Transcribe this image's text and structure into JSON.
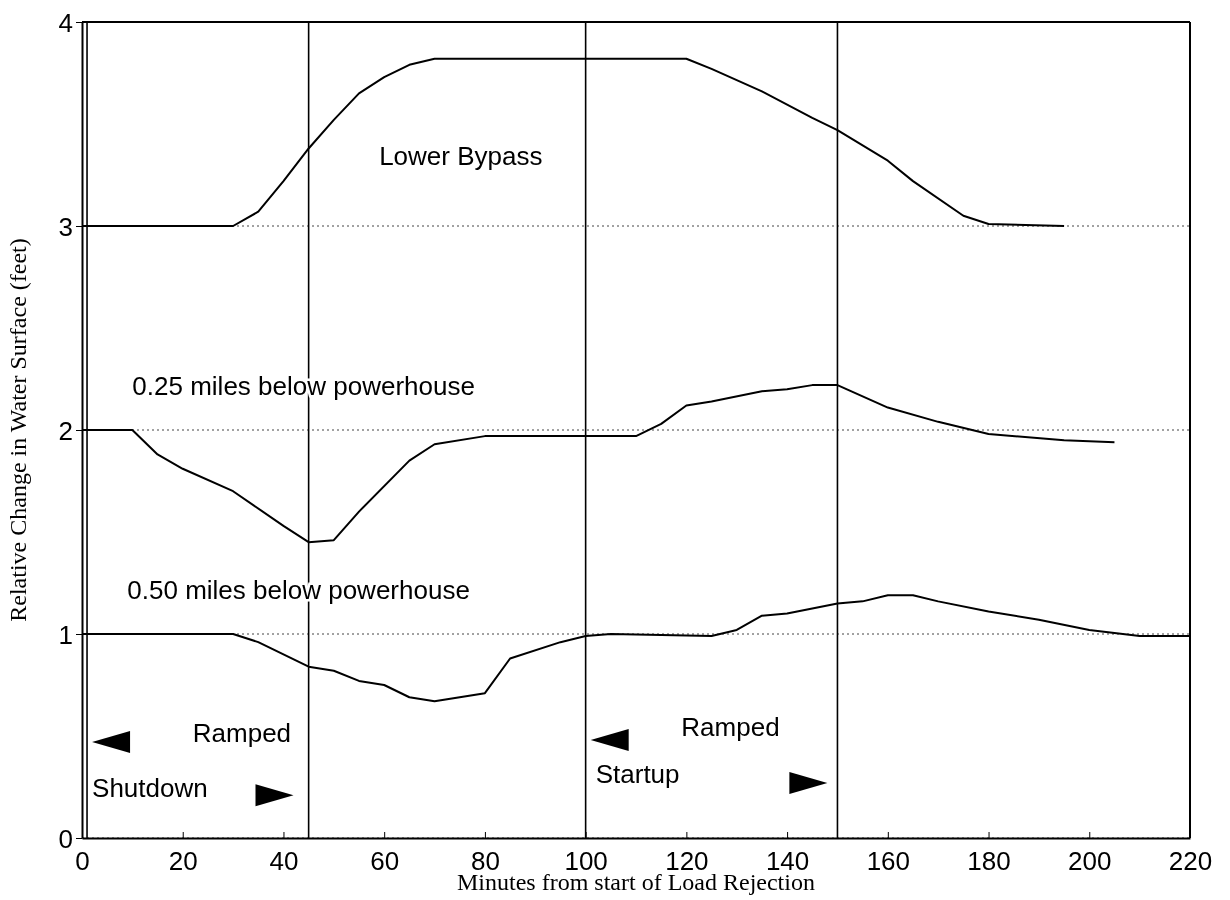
{
  "chart_data": {
    "type": "line",
    "xlabel": "Minutes from start of Load Rejection",
    "ylabel": "Relative Change in Water Surface (feet)",
    "xlim": [
      0,
      220
    ],
    "xticks": [
      0,
      20,
      40,
      60,
      80,
      100,
      120,
      140,
      160,
      180,
      200,
      220
    ],
    "ylim": [
      0,
      4
    ],
    "yticks": [
      0,
      1,
      2,
      3,
      4
    ],
    "grid": "y",
    "line_style": "solid",
    "series": [
      {
        "name": "Lower Bypass",
        "color": "#000000",
        "x": [
          0,
          30,
          35,
          40,
          45,
          50,
          55,
          60,
          65,
          70,
          120,
          125,
          135,
          145,
          150,
          160,
          165,
          175,
          180,
          195
        ],
        "values": [
          3.0,
          3.0,
          3.07,
          3.22,
          3.38,
          3.52,
          3.65,
          3.73,
          3.79,
          3.82,
          3.82,
          3.77,
          3.66,
          3.53,
          3.47,
          3.32,
          3.22,
          3.05,
          3.01,
          3.0
        ]
      },
      {
        "name": "0.25 miles below powerhouse",
        "color": "#000000",
        "x": [
          0,
          10,
          15,
          20,
          30,
          40,
          45,
          50,
          55,
          65,
          70,
          80,
          110,
          115,
          120,
          125,
          135,
          140,
          145,
          150,
          160,
          170,
          180,
          195,
          205
        ],
        "values": [
          2.0,
          2.0,
          1.88,
          1.81,
          1.7,
          1.53,
          1.45,
          1.46,
          1.6,
          1.85,
          1.93,
          1.97,
          1.97,
          2.03,
          2.12,
          2.14,
          2.19,
          2.2,
          2.22,
          2.22,
          2.11,
          2.04,
          1.98,
          1.95,
          1.94
        ]
      },
      {
        "name": "0.50 miles below powerhouse",
        "color": "#000000",
        "x": [
          0,
          30,
          35,
          45,
          50,
          55,
          60,
          65,
          70,
          80,
          85,
          95,
          100,
          105,
          125,
          130,
          135,
          140,
          150,
          155,
          160,
          165,
          170,
          180,
          190,
          200,
          210,
          220
        ],
        "values": [
          1.0,
          1.0,
          0.96,
          0.84,
          0.82,
          0.77,
          0.75,
          0.69,
          0.67,
          0.71,
          0.88,
          0.96,
          0.99,
          1.0,
          0.99,
          1.02,
          1.09,
          1.1,
          1.15,
          1.16,
          1.19,
          1.19,
          1.16,
          1.11,
          1.07,
          1.02,
          0.99,
          0.99
        ]
      }
    ],
    "ref_lines": [
      {
        "axis": "x",
        "value": 1,
        "color": "#000000"
      },
      {
        "axis": "x",
        "value": 45,
        "color": "#000000"
      },
      {
        "axis": "x",
        "value": 100,
        "color": "#000000"
      },
      {
        "axis": "x",
        "value": 150,
        "color": "#000000"
      }
    ],
    "annotations": [
      "Ramped",
      "Shutdown",
      "Ramped",
      "Startup"
    ]
  }
}
